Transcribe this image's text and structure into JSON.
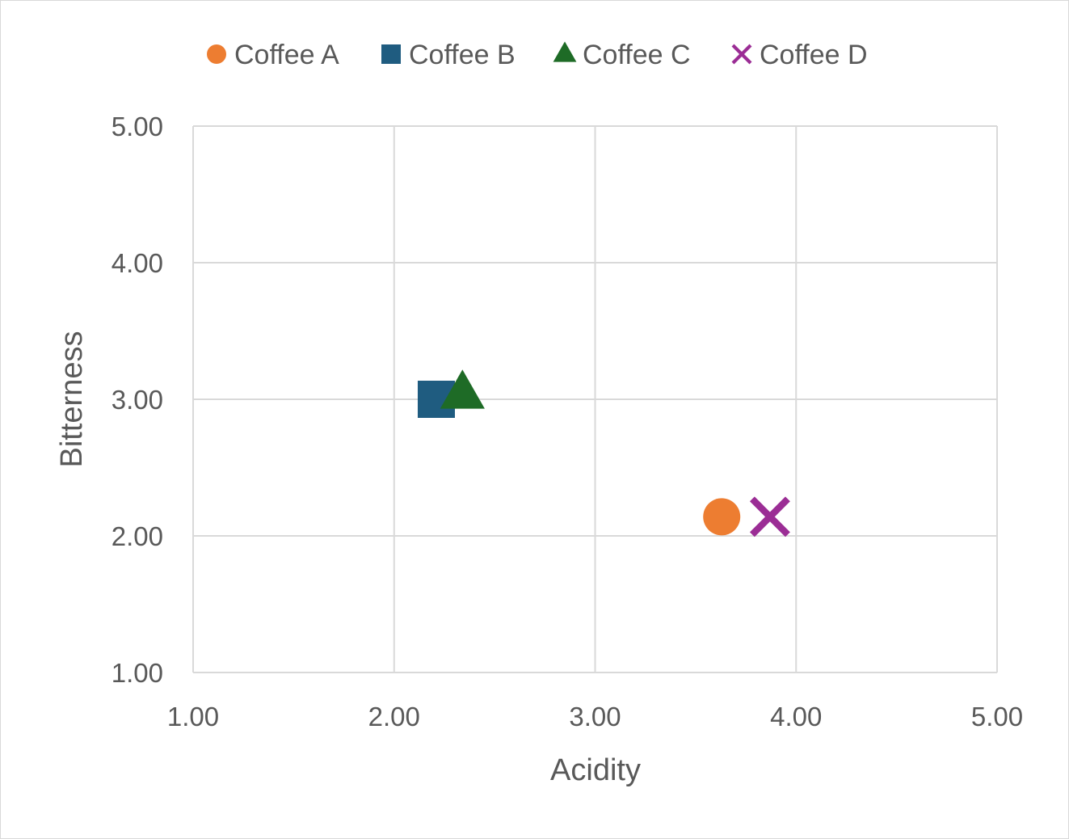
{
  "chart_data": {
    "type": "scatter",
    "title": "",
    "xlabel": "Acidity",
    "ylabel": "Bitterness",
    "xlim": [
      1.0,
      5.0
    ],
    "ylim": [
      1.0,
      5.0
    ],
    "xticks": [
      "1.00",
      "2.00",
      "3.00",
      "4.00",
      "5.00"
    ],
    "yticks": [
      "1.00",
      "2.00",
      "3.00",
      "4.00",
      "5.00"
    ],
    "grid": true,
    "legend_position": "top",
    "series": [
      {
        "name": "Coffee A",
        "marker": "circle",
        "color": "#ED7D31",
        "x": 3.63,
        "y": 2.14
      },
      {
        "name": "Coffee B",
        "marker": "square",
        "color": "#1F5C80",
        "x": 2.21,
        "y": 3.0
      },
      {
        "name": "Coffee C",
        "marker": "triangle",
        "color": "#1E6B26",
        "x": 2.34,
        "y": 3.04
      },
      {
        "name": "Coffee D",
        "marker": "x",
        "color": "#9B2D95",
        "x": 3.87,
        "y": 2.14
      }
    ]
  }
}
